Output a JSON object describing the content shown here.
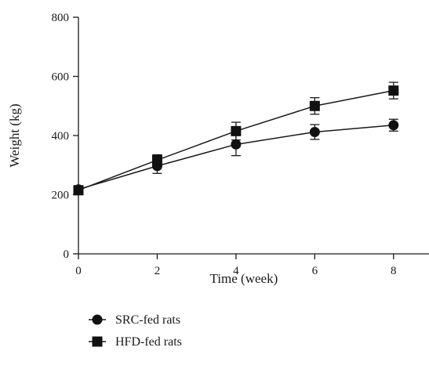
{
  "chart_data": {
    "type": "line",
    "title": "",
    "xlabel": "Time (week)",
    "ylabel": "Weight (kg)",
    "xlim": [
      0,
      8.9
    ],
    "ylim": [
      0,
      800
    ],
    "x_ticks": [
      "0",
      "2",
      "4",
      "6",
      "8"
    ],
    "y_ticks": [
      "0",
      "200",
      "400",
      "600",
      "800"
    ],
    "x": [
      0,
      2,
      4,
      6,
      8
    ],
    "series": [
      {
        "name": "SRC-fed rats",
        "marker": "circle",
        "color": "#111111",
        "values": [
          218,
          297,
          370,
          412,
          435
        ],
        "error": [
          8,
          25,
          38,
          25,
          20
        ]
      },
      {
        "name": "HFD-fed rats",
        "marker": "square",
        "color": "#111111",
        "values": [
          215,
          317,
          415,
          500,
          552
        ],
        "error": [
          10,
          18,
          30,
          28,
          28
        ]
      }
    ],
    "grid": false,
    "legend_position": "bottom-left"
  }
}
